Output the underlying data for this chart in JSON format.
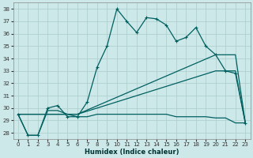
{
  "xlabel": "Humidex (Indice chaleur)",
  "xlim": [
    -0.5,
    23.5
  ],
  "ylim": [
    27.5,
    38.5
  ],
  "yticks": [
    28,
    29,
    30,
    31,
    32,
    33,
    34,
    35,
    36,
    37,
    38
  ],
  "xticks": [
    0,
    1,
    2,
    3,
    4,
    5,
    6,
    7,
    8,
    9,
    10,
    11,
    12,
    13,
    14,
    15,
    16,
    17,
    18,
    19,
    20,
    21,
    22,
    23
  ],
  "background_color": "#cde8e8",
  "grid_color": "#b0d0d0",
  "line_color": "#006060",
  "line1_x": [
    0,
    1,
    2,
    3,
    4,
    5,
    6,
    7,
    8,
    9,
    10,
    11,
    12,
    13,
    14,
    15,
    16,
    17,
    18,
    19,
    20,
    21,
    22,
    23
  ],
  "line1_y": [
    29.5,
    27.8,
    27.8,
    30.0,
    30.2,
    29.3,
    29.3,
    30.5,
    33.3,
    35.0,
    38.0,
    37.0,
    36.1,
    37.3,
    37.2,
    36.7,
    35.4,
    35.7,
    36.5,
    35.0,
    34.3,
    33.0,
    32.8,
    28.8
  ],
  "line2_x": [
    0,
    5,
    6,
    20,
    22,
    23
  ],
  "line2_y": [
    29.5,
    29.5,
    29.5,
    34.3,
    34.3,
    28.8
  ],
  "line3_x": [
    0,
    5,
    6,
    20,
    22,
    23
  ],
  "line3_y": [
    29.5,
    29.5,
    29.5,
    33.0,
    33.0,
    28.8
  ],
  "flatline_x": [
    0,
    1,
    2,
    3,
    4,
    5,
    6,
    7,
    8,
    9,
    10,
    11,
    12,
    13,
    14,
    15,
    16,
    17,
    18,
    19,
    20,
    21,
    22,
    23
  ],
  "flatline_y": [
    29.5,
    27.8,
    27.8,
    29.8,
    29.8,
    29.5,
    29.3,
    29.3,
    29.5,
    29.5,
    29.5,
    29.5,
    29.5,
    29.5,
    29.5,
    29.5,
    29.3,
    29.3,
    29.3,
    29.3,
    29.2,
    29.2,
    28.8,
    28.8
  ]
}
